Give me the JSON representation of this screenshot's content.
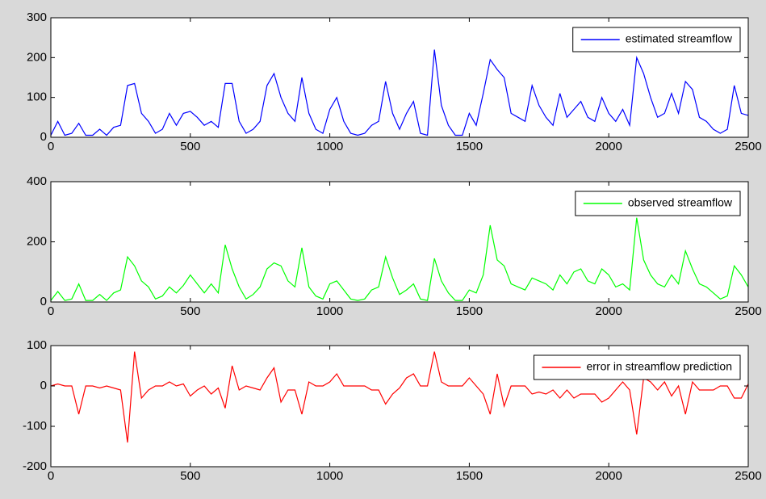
{
  "chart_data": [
    {
      "type": "line",
      "legend": "upper right",
      "xlim": [
        0,
        2500
      ],
      "xticks": [
        0,
        500,
        1000,
        1500,
        2000,
        2500
      ],
      "ylim": [
        0,
        300
      ],
      "yticks": [
        0,
        100,
        200,
        300
      ],
      "series": [
        {
          "name": "estimated streamflow",
          "color": "#0000ff",
          "x": [
            0,
            25,
            50,
            75,
            100,
            125,
            150,
            175,
            200,
            225,
            250,
            275,
            300,
            325,
            350,
            375,
            400,
            425,
            450,
            475,
            500,
            525,
            550,
            575,
            600,
            625,
            650,
            675,
            700,
            725,
            750,
            775,
            800,
            825,
            850,
            875,
            900,
            925,
            950,
            975,
            1000,
            1025,
            1050,
            1075,
            1100,
            1125,
            1150,
            1175,
            1200,
            1225,
            1250,
            1275,
            1300,
            1325,
            1350,
            1375,
            1400,
            1425,
            1450,
            1475,
            1500,
            1525,
            1550,
            1575,
            1600,
            1625,
            1650,
            1675,
            1700,
            1725,
            1750,
            1775,
            1800,
            1825,
            1850,
            1875,
            1900,
            1925,
            1950,
            1975,
            2000,
            2025,
            2050,
            2075,
            2100,
            2125,
            2150,
            2175,
            2200,
            2225,
            2250,
            2275,
            2300,
            2325,
            2350,
            2375,
            2400,
            2425,
            2450,
            2475,
            2500
          ],
          "values": [
            5,
            40,
            5,
            10,
            35,
            5,
            5,
            20,
            5,
            25,
            30,
            130,
            135,
            60,
            40,
            10,
            20,
            60,
            30,
            60,
            65,
            50,
            30,
            40,
            25,
            135,
            135,
            40,
            10,
            20,
            40,
            130,
            160,
            100,
            60,
            40,
            150,
            60,
            20,
            10,
            70,
            100,
            40,
            10,
            5,
            10,
            30,
            40,
            140,
            60,
            20,
            60,
            90,
            10,
            5,
            220,
            80,
            30,
            5,
            5,
            60,
            30,
            110,
            195,
            170,
            150,
            60,
            50,
            40,
            130,
            80,
            50,
            30,
            110,
            50,
            70,
            90,
            50,
            40,
            100,
            60,
            40,
            70,
            30,
            200,
            160,
            100,
            50,
            60,
            110,
            60,
            140,
            120,
            50,
            40,
            20,
            10,
            20,
            130,
            60,
            55
          ]
        }
      ]
    },
    {
      "type": "line",
      "legend": "upper right",
      "xlim": [
        0,
        2500
      ],
      "xticks": [
        0,
        500,
        1000,
        1500,
        2000,
        2500
      ],
      "ylim": [
        0,
        400
      ],
      "yticks": [
        0,
        200,
        400
      ],
      "series": [
        {
          "name": "observed streamflow",
          "color": "#00ff00",
          "x": [
            0,
            25,
            50,
            75,
            100,
            125,
            150,
            175,
            200,
            225,
            250,
            275,
            300,
            325,
            350,
            375,
            400,
            425,
            450,
            475,
            500,
            525,
            550,
            575,
            600,
            625,
            650,
            675,
            700,
            725,
            750,
            775,
            800,
            825,
            850,
            875,
            900,
            925,
            950,
            975,
            1000,
            1025,
            1050,
            1075,
            1100,
            1125,
            1150,
            1175,
            1200,
            1225,
            1250,
            1275,
            1300,
            1325,
            1350,
            1375,
            1400,
            1425,
            1450,
            1475,
            1500,
            1525,
            1550,
            1575,
            1600,
            1625,
            1650,
            1675,
            1700,
            1725,
            1750,
            1775,
            1800,
            1825,
            1850,
            1875,
            1900,
            1925,
            1950,
            1975,
            2000,
            2025,
            2050,
            2075,
            2100,
            2125,
            2150,
            2175,
            2200,
            2225,
            2250,
            2275,
            2300,
            2325,
            2350,
            2375,
            2400,
            2425,
            2450,
            2475,
            2500
          ],
          "values": [
            5,
            35,
            5,
            10,
            60,
            5,
            5,
            25,
            5,
            30,
            40,
            150,
            120,
            70,
            50,
            10,
            20,
            50,
            30,
            55,
            90,
            60,
            30,
            60,
            30,
            190,
            110,
            50,
            10,
            25,
            50,
            110,
            130,
            120,
            70,
            50,
            180,
            50,
            20,
            10,
            60,
            70,
            40,
            10,
            5,
            10,
            40,
            50,
            150,
            80,
            25,
            40,
            60,
            10,
            5,
            145,
            70,
            30,
            5,
            5,
            40,
            30,
            90,
            255,
            140,
            120,
            60,
            50,
            40,
            80,
            70,
            60,
            40,
            90,
            60,
            100,
            110,
            70,
            60,
            110,
            90,
            50,
            60,
            40,
            280,
            140,
            90,
            60,
            50,
            90,
            60,
            170,
            110,
            60,
            50,
            30,
            10,
            20,
            120,
            90,
            50
          ]
        }
      ]
    },
    {
      "type": "line",
      "legend": "upper right",
      "xlim": [
        0,
        2500
      ],
      "xticks": [
        0,
        500,
        1000,
        1500,
        2000,
        2500
      ],
      "ylim": [
        -200,
        100
      ],
      "yticks": [
        -200,
        -100,
        0,
        100
      ],
      "series": [
        {
          "name": "error in streamflow prediction",
          "color": "#ff0000",
          "x": [
            0,
            25,
            50,
            75,
            100,
            125,
            150,
            175,
            200,
            225,
            250,
            275,
            300,
            325,
            350,
            375,
            400,
            425,
            450,
            475,
            500,
            525,
            550,
            575,
            600,
            625,
            650,
            675,
            700,
            725,
            750,
            775,
            800,
            825,
            850,
            875,
            900,
            925,
            950,
            975,
            1000,
            1025,
            1050,
            1075,
            1100,
            1125,
            1150,
            1175,
            1200,
            1225,
            1250,
            1275,
            1300,
            1325,
            1350,
            1375,
            1400,
            1425,
            1450,
            1475,
            1500,
            1525,
            1550,
            1575,
            1600,
            1625,
            1650,
            1675,
            1700,
            1725,
            1750,
            1775,
            1800,
            1825,
            1850,
            1875,
            1900,
            1925,
            1950,
            1975,
            2000,
            2025,
            2050,
            2075,
            2100,
            2125,
            2150,
            2175,
            2200,
            2225,
            2250,
            2275,
            2300,
            2325,
            2350,
            2375,
            2400,
            2425,
            2450,
            2475,
            2500
          ],
          "values": [
            0,
            5,
            0,
            0,
            -70,
            0,
            0,
            -5,
            0,
            -5,
            -10,
            -140,
            85,
            -30,
            -10,
            0,
            0,
            10,
            0,
            5,
            -25,
            -10,
            0,
            -20,
            -5,
            -55,
            50,
            -10,
            0,
            -5,
            -10,
            20,
            45,
            -40,
            -10,
            -10,
            -70,
            10,
            0,
            0,
            10,
            30,
            0,
            0,
            0,
            0,
            -10,
            -10,
            -45,
            -20,
            -5,
            20,
            30,
            0,
            0,
            85,
            10,
            0,
            0,
            0,
            20,
            0,
            -20,
            -70,
            30,
            -50,
            0,
            0,
            0,
            -20,
            -15,
            -20,
            -10,
            -30,
            -10,
            -30,
            -20,
            -20,
            -20,
            -40,
            -30,
            -10,
            10,
            -10,
            -120,
            20,
            10,
            -10,
            10,
            -25,
            0,
            -70,
            10,
            -10,
            -10,
            -10,
            0,
            0,
            -30,
            -30,
            5
          ]
        }
      ]
    }
  ]
}
